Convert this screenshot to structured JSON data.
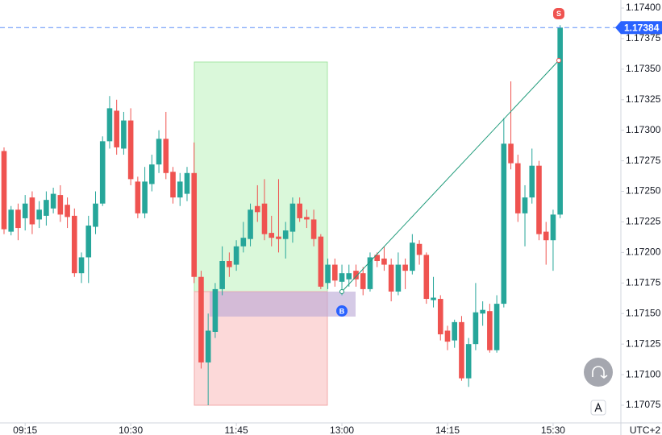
{
  "chart_data": {
    "type": "candlestick",
    "x": [
      "09:00",
      "09:05",
      "09:10",
      "09:15",
      "09:20",
      "09:25",
      "09:30",
      "09:35",
      "09:40",
      "09:45",
      "09:50",
      "09:55",
      "10:00",
      "10:05",
      "10:10",
      "10:15",
      "10:20",
      "10:25",
      "10:30",
      "10:35",
      "10:40",
      "10:45",
      "10:50",
      "10:55",
      "11:00",
      "11:05",
      "11:10",
      "11:15",
      "11:20",
      "11:25",
      "11:30",
      "11:35",
      "11:40",
      "11:45",
      "11:50",
      "11:55",
      "12:00",
      "12:05",
      "12:10",
      "12:15",
      "12:20",
      "12:25",
      "12:30",
      "12:35",
      "12:40",
      "12:45",
      "12:50",
      "12:55",
      "13:00",
      "13:05",
      "13:10",
      "13:15",
      "13:20",
      "13:25",
      "13:30",
      "13:35",
      "13:40",
      "13:45",
      "13:50",
      "13:55",
      "14:00",
      "14:05",
      "14:10",
      "14:15",
      "14:20",
      "14:25",
      "14:30",
      "14:35",
      "14:40",
      "14:45",
      "14:50",
      "14:55",
      "15:00",
      "15:05",
      "15:10",
      "15:15",
      "15:20",
      "15:25",
      "15:30",
      "15:35"
    ],
    "open": [
      1.17283,
      1.17217,
      1.17235,
      1.17228,
      1.17245,
      1.17227,
      1.1723,
      1.17236,
      1.17247,
      1.17239,
      1.1723,
      1.17183,
      1.17196,
      1.17221,
      1.1724,
      1.17291,
      1.17316,
      1.17285,
      1.17308,
      1.17258,
      1.17232,
      1.17256,
      1.17272,
      1.17293,
      1.17266,
      1.17245,
      1.17248,
      1.17265,
      1.1718,
      1.1711,
      1.17135,
      1.1717,
      1.17193,
      1.1719,
      1.17205,
      1.17211,
      1.17238,
      1.1724,
      1.17216,
      1.17213,
      1.17211,
      1.17217,
      1.1724,
      1.17229,
      1.17227,
      1.17213,
      1.17175,
      1.1719,
      1.17176,
      1.17178,
      1.17185,
      1.17183,
      1.1717,
      1.17198,
      1.17195,
      1.1719,
      1.17168,
      1.1719,
      1.17185,
      1.17207,
      1.17198,
      1.17161,
      1.17162,
      1.17136,
      1.17128,
      1.17143,
      1.17097,
      1.17125,
      1.1715,
      1.17152,
      1.1712,
      1.17158,
      1.17289,
      1.17273,
      1.17232,
      1.17245,
      1.17271,
      1.17217,
      1.1721,
      1.17231
    ],
    "high": [
      1.17286,
      1.17238,
      1.1724,
      1.17247,
      1.1725,
      1.17242,
      1.1725,
      1.17253,
      1.17255,
      1.17245,
      1.17236,
      1.172,
      1.1723,
      1.1725,
      1.17295,
      1.17328,
      1.17325,
      1.17315,
      1.17318,
      1.17262,
      1.1727,
      1.1728,
      1.173,
      1.17315,
      1.1727,
      1.17265,
      1.1727,
      1.1729,
      1.17185,
      1.1715,
      1.17175,
      1.17205,
      1.172,
      1.1721,
      1.17225,
      1.1724,
      1.17255,
      1.1726,
      1.1723,
      1.1726,
      1.17225,
      1.17245,
      1.17245,
      1.17235,
      1.17235,
      1.17215,
      1.17195,
      1.17195,
      1.1719,
      1.1719,
      1.1719,
      1.17188,
      1.172,
      1.172,
      1.17205,
      1.17195,
      1.172,
      1.17195,
      1.17215,
      1.1721,
      1.172,
      1.1718,
      1.17165,
      1.1714,
      1.17145,
      1.17148,
      1.1713,
      1.17175,
      1.1716,
      1.17158,
      1.17165,
      1.1731,
      1.1734,
      1.1728,
      1.17255,
      1.17285,
      1.17275,
      1.17225,
      1.17235,
      1.17386
    ],
    "low": [
      1.17215,
      1.17214,
      1.1721,
      1.17218,
      1.17215,
      1.1722,
      1.17222,
      1.17232,
      1.17225,
      1.1722,
      1.1718,
      1.17175,
      1.17175,
      1.17215,
      1.17238,
      1.17285,
      1.1728,
      1.1728,
      1.17255,
      1.17228,
      1.17228,
      1.1725,
      1.17265,
      1.1726,
      1.1724,
      1.17238,
      1.17242,
      1.17175,
      1.17105,
      1.17075,
      1.1713,
      1.17165,
      1.1718,
      1.17185,
      1.172,
      1.17205,
      1.17225,
      1.1721,
      1.17205,
      1.172,
      1.17195,
      1.17208,
      1.17225,
      1.1722,
      1.17205,
      1.1717,
      1.1717,
      1.17172,
      1.17165,
      1.17172,
      1.17172,
      1.17165,
      1.17168,
      1.17188,
      1.17185,
      1.1716,
      1.17165,
      1.1717,
      1.17182,
      1.1719,
      1.17158,
      1.17155,
      1.17128,
      1.1712,
      1.17122,
      1.17095,
      1.1709,
      1.1712,
      1.1714,
      1.17118,
      1.17118,
      1.17155,
      1.17268,
      1.17225,
      1.17205,
      1.1724,
      1.1721,
      1.1719,
      1.17185,
      1.17228
    ],
    "close": [
      1.17219,
      1.17235,
      1.1722,
      1.1724,
      1.17223,
      1.17235,
      1.17243,
      1.17248,
      1.17231,
      1.17229,
      1.17183,
      1.17196,
      1.17222,
      1.1724,
      1.17291,
      1.17318,
      1.17286,
      1.17308,
      1.1726,
      1.17232,
      1.17258,
      1.17272,
      1.17293,
      1.17265,
      1.17245,
      1.17258,
      1.17265,
      1.1718,
      1.1711,
      1.17136,
      1.1717,
      1.17193,
      1.17188,
      1.17205,
      1.17212,
      1.17235,
      1.17233,
      1.17215,
      1.17212,
      1.17211,
      1.17218,
      1.1724,
      1.17228,
      1.17227,
      1.17211,
      1.17172,
      1.1719,
      1.17177,
      1.17183,
      1.17183,
      1.17178,
      1.1717,
      1.17196,
      1.17193,
      1.1719,
      1.17168,
      1.1719,
      1.17185,
      1.17208,
      1.17198,
      1.17162,
      1.17163,
      1.17133,
      1.17127,
      1.17143,
      1.17097,
      1.17125,
      1.17151,
      1.17153,
      1.1712,
      1.17158,
      1.17289,
      1.17273,
      1.17232,
      1.17245,
      1.17271,
      1.17215,
      1.1721,
      1.17231,
      1.17384
    ],
    "up_color": "#26a69a",
    "down_color": "#ef5350",
    "ylim": [
      1.170605,
      1.174066
    ],
    "yticks": [
      1.17075,
      {
        "value": 1.171,
        "label": "1.17100"
      },
      1.17125,
      {
        "value": 1.1715,
        "label": "1.17150"
      },
      1.17175,
      {
        "value": 1.172,
        "label": "1.17200"
      },
      1.17225,
      {
        "value": 1.1725,
        "label": "1.17250"
      },
      1.17275,
      {
        "value": 1.173,
        "label": "1.17300"
      },
      1.17325,
      {
        "value": 1.1735,
        "label": "1.17350"
      },
      1.17375,
      {
        "value": 1.174,
        "label": "1.17400"
      }
    ],
    "xticks": [
      "09:15",
      "10:30",
      "11:45",
      "13:00",
      "14:15",
      "15:30"
    ],
    "last_price": 1.17384,
    "timezone": "UTC+2",
    "buy_marker": "B",
    "sell_marker": "S",
    "grid": false
  }
}
